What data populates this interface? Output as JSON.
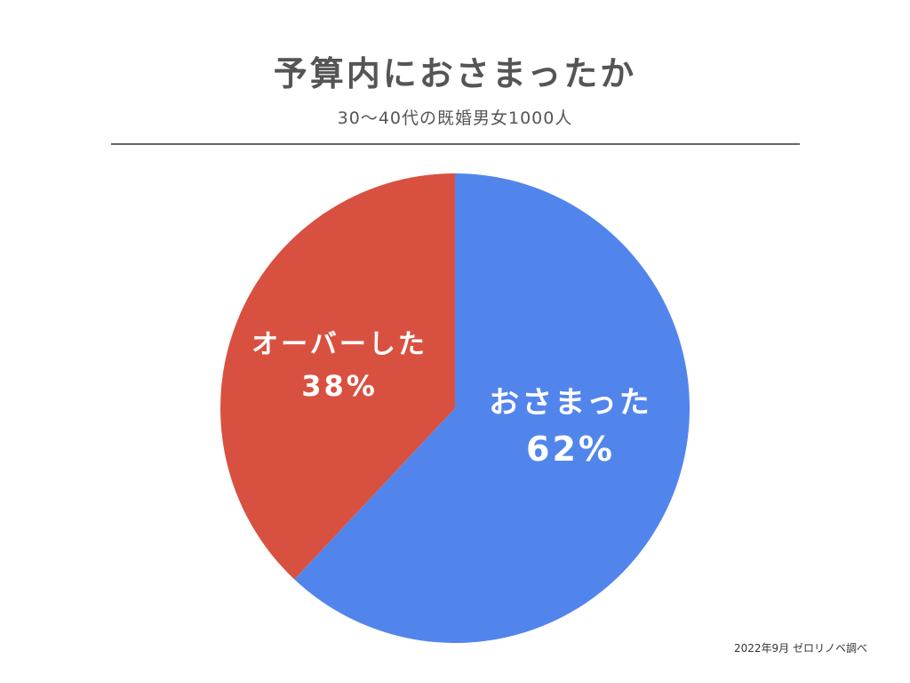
{
  "chart_data": {
    "type": "pie",
    "title": "予算内におさまったか",
    "subtitle": "30〜40代の既婚男女1000人",
    "slices": [
      {
        "label": "おさまった",
        "value": 62,
        "value_label": "62%",
        "color": "#5285EC"
      },
      {
        "label": "オーバーした",
        "value": 38,
        "value_label": "38%",
        "color": "#D85140"
      }
    ],
    "start_angle_deg": 0,
    "direction": "clockwise",
    "legend": "none"
  },
  "footer": {
    "source": "2022年9月 ゼロリノベ調べ"
  }
}
